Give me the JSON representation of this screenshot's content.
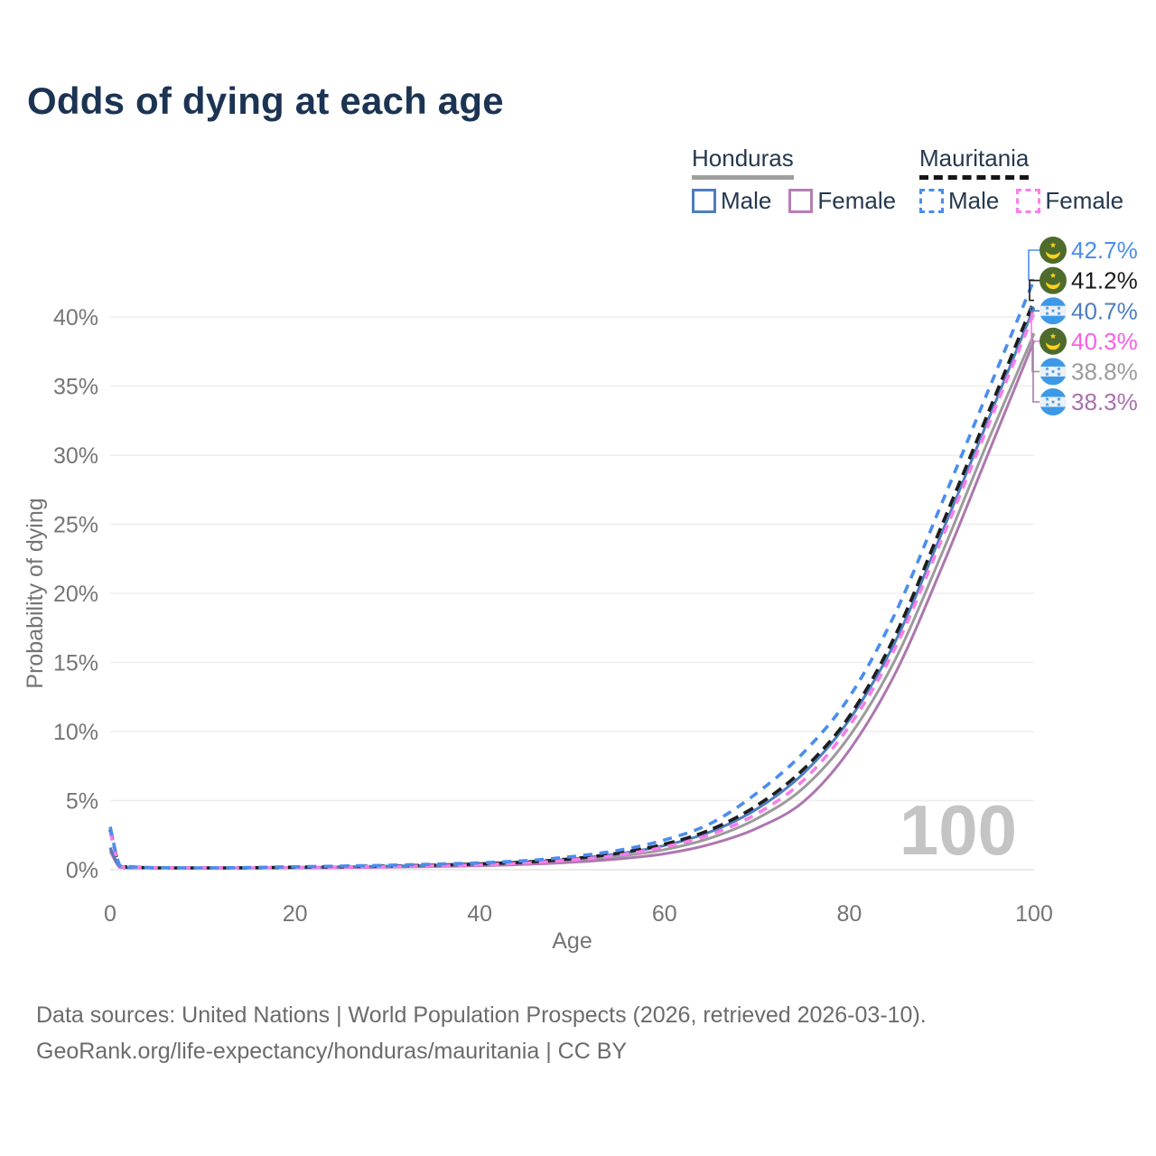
{
  "title": "Odds of dying at each age",
  "legend": {
    "groups": [
      {
        "label": "Honduras",
        "line_style": "solid",
        "underline_color": "#9e9e9e",
        "items": [
          {
            "label": "Male",
            "color": "#4d7ebf"
          },
          {
            "label": "Female",
            "color": "#b77eb4"
          }
        ]
      },
      {
        "label": "Mauritania",
        "line_style": "dashed",
        "underline_color": "#161616",
        "items": [
          {
            "label": "Male",
            "color": "#4a8dee"
          },
          {
            "label": "Female",
            "color": "#fb7de9"
          }
        ]
      }
    ]
  },
  "age_indicator": "100",
  "footer": {
    "line1": "Data sources: United Nations | World Population Prospects (2026, retrieved 2026-03-10).",
    "line2": "GeoRank.org/life-expectancy/honduras/mauritania | CC BY"
  },
  "chart_data": {
    "type": "line",
    "title": "Odds of dying at each age",
    "xlabel": "Age",
    "ylabel": "Probability of dying",
    "xlim": [
      0,
      100
    ],
    "ylim": [
      0,
      44
    ],
    "x_ticks": [
      0,
      20,
      40,
      60,
      80,
      100
    ],
    "y_ticks": [
      0,
      5,
      10,
      15,
      20,
      25,
      30,
      35,
      40
    ],
    "y_tick_suffix": "%",
    "grid": true,
    "legend_position": "top-right",
    "x": [
      0,
      1,
      2,
      5,
      10,
      15,
      20,
      25,
      30,
      35,
      40,
      45,
      50,
      55,
      60,
      65,
      70,
      75,
      80,
      85,
      90,
      95,
      100
    ],
    "series": [
      {
        "name": "Mauritania Male",
        "country": "Mauritania",
        "sex": "male",
        "color": "#4a8dee",
        "label_color": "#4a8dee",
        "dash": "10 8",
        "flag": "mauritania",
        "end_label": "42.7%",
        "values": [
          3.1,
          0.35,
          0.22,
          0.15,
          0.13,
          0.16,
          0.21,
          0.26,
          0.32,
          0.4,
          0.5,
          0.66,
          0.95,
          1.4,
          2.15,
          3.35,
          5.55,
          8.45,
          12.5,
          18.6,
          26.5,
          34.6,
          42.7
        ]
      },
      {
        "name": "Mauritania (both sexes)",
        "country": "Mauritania",
        "sex": "both",
        "color": "#1d1d1d",
        "label_color": "#1a1a1a",
        "dash": "12 7",
        "flag": "mauritania",
        "end_label": "41.2%",
        "values": [
          2.9,
          0.32,
          0.2,
          0.13,
          0.12,
          0.14,
          0.18,
          0.22,
          0.27,
          0.33,
          0.42,
          0.56,
          0.8,
          1.2,
          1.85,
          2.9,
          4.65,
          7.25,
          11.1,
          17.0,
          24.9,
          33.0,
          41.2
        ]
      },
      {
        "name": "Honduras Male",
        "country": "Honduras",
        "sex": "male",
        "color": "#4d7ebf",
        "label_color": "#4d7ebf",
        "dash": null,
        "flag": "honduras",
        "end_label": "40.7%",
        "values": [
          1.6,
          0.22,
          0.14,
          0.1,
          0.1,
          0.13,
          0.17,
          0.21,
          0.26,
          0.32,
          0.41,
          0.55,
          0.78,
          1.15,
          1.75,
          2.75,
          4.4,
          6.95,
          10.85,
          16.55,
          24.35,
          32.5,
          40.7
        ]
      },
      {
        "name": "Mauritania Female",
        "country": "Mauritania",
        "sex": "female",
        "color": "#f77de8",
        "label_color": "#f75fe3",
        "dash": "10 8",
        "flag": "mauritania",
        "end_label": "40.3%",
        "values": [
          2.75,
          0.3,
          0.19,
          0.12,
          0.11,
          0.13,
          0.16,
          0.19,
          0.23,
          0.28,
          0.36,
          0.49,
          0.7,
          1.05,
          1.65,
          2.55,
          4.05,
          6.45,
          10.4,
          16.1,
          23.9,
          32.1,
          40.3
        ]
      },
      {
        "name": "Honduras (both sexes)",
        "country": "Honduras",
        "sex": "both",
        "color": "#9b9b9b",
        "label_color": "#9b9b9b",
        "dash": null,
        "flag": "honduras",
        "end_label": "38.8%",
        "values": [
          1.5,
          0.2,
          0.13,
          0.09,
          0.09,
          0.11,
          0.15,
          0.18,
          0.22,
          0.28,
          0.35,
          0.47,
          0.66,
          0.97,
          1.45,
          2.3,
          3.7,
          5.9,
          9.65,
          15.25,
          22.85,
          31.0,
          38.8
        ]
      },
      {
        "name": "Honduras Female",
        "country": "Honduras",
        "sex": "female",
        "color": "#ad77b0",
        "label_color": "#a96fad",
        "dash": null,
        "flag": "honduras",
        "end_label": "38.3%",
        "values": [
          1.35,
          0.18,
          0.12,
          0.08,
          0.08,
          0.09,
          0.12,
          0.15,
          0.18,
          0.23,
          0.29,
          0.39,
          0.54,
          0.78,
          1.15,
          1.85,
          3.0,
          4.9,
          8.65,
          14.25,
          21.85,
          30.05,
          38.3
        ]
      }
    ],
    "colors": {
      "title": "#1c3453",
      "axis_text": "#757575",
      "grid": "#ededed",
      "zero_line": "#e4e4e4",
      "watermark": "#c4c4c4",
      "flag_mauritania_green": "#4e6b2c",
      "flag_mauritania_yellow": "#ffd21c",
      "flag_honduras_blue": "#3c99e8",
      "flag_honduras_white": "#eef1f4"
    }
  }
}
